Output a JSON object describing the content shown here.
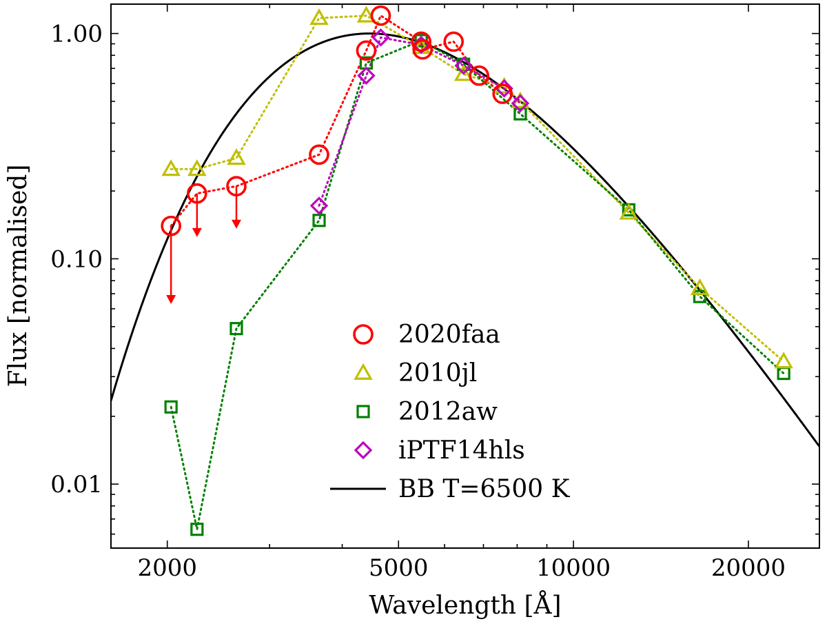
{
  "chart_data": {
    "type": "scatter",
    "xscale": "log",
    "yscale": "log",
    "xlabel": "Wavelength [Å]",
    "ylabel": "Flux [normalised]",
    "xlim": [
      1600,
      26500
    ],
    "ylim": [
      0.0052,
      1.35
    ],
    "xticks": [
      {
        "value": 2000,
        "label": "2000"
      },
      {
        "value": 5000,
        "label": "5000"
      },
      {
        "value": 10000,
        "label": "10000"
      },
      {
        "value": 20000,
        "label": "20000"
      }
    ],
    "yticks": [
      {
        "value": 0.01,
        "label": "0.01"
      },
      {
        "value": 0.1,
        "label": "0.10"
      },
      {
        "value": 1.0,
        "label": "1.00"
      }
    ],
    "legend_position": "lower-center",
    "series": [
      {
        "name": "2020faa",
        "marker": "circle",
        "color": "#ff0000",
        "line": "dotted",
        "x": [
          2030,
          2250,
          2630,
          3650,
          4400,
          4660,
          5470,
          5500,
          6220,
          6880,
          7550
        ],
        "y": [
          0.14,
          0.195,
          0.21,
          0.29,
          0.84,
          1.2,
          0.92,
          0.85,
          0.92,
          0.65,
          0.54
        ],
        "upper_limits": [
          {
            "x": 2030,
            "y": 0.14,
            "to": 0.063
          },
          {
            "x": 2250,
            "y": 0.195,
            "to": 0.125
          },
          {
            "x": 2630,
            "y": 0.21,
            "to": 0.136
          }
        ]
      },
      {
        "name": "2010jl",
        "marker": "triangle",
        "color": "#bfbf00",
        "line": "dotted",
        "x": [
          2030,
          2250,
          2630,
          3650,
          4400,
          5470,
          6470,
          7600,
          8100,
          12450,
          16500,
          23000
        ],
        "y": [
          0.25,
          0.25,
          0.28,
          1.17,
          1.2,
          0.87,
          0.66,
          0.58,
          0.5,
          0.16,
          0.074,
          0.035
        ]
      },
      {
        "name": "2012aw",
        "marker": "square",
        "color": "#008000",
        "line": "dotted",
        "x": [
          2030,
          2250,
          2630,
          3650,
          4400,
          5470,
          6470,
          8100,
          12450,
          16500,
          23000
        ],
        "y": [
          0.022,
          0.0063,
          0.049,
          0.148,
          0.74,
          0.93,
          0.73,
          0.44,
          0.165,
          0.068,
          0.031
        ]
      },
      {
        "name": "iPTF14hls",
        "marker": "diamond",
        "color": "#bf00bf",
        "line": "dotted",
        "x": [
          3650,
          4400,
          4660,
          5470,
          6470,
          7600,
          8100
        ],
        "y": [
          0.172,
          0.65,
          0.96,
          0.89,
          0.72,
          0.57,
          0.49
        ]
      },
      {
        "name": "BB T=6500 K",
        "marker": "none",
        "color": "#000000",
        "line": "solid",
        "model": "blackbody",
        "temperature_K": 6500,
        "normalisation": "peak = 1"
      }
    ]
  }
}
